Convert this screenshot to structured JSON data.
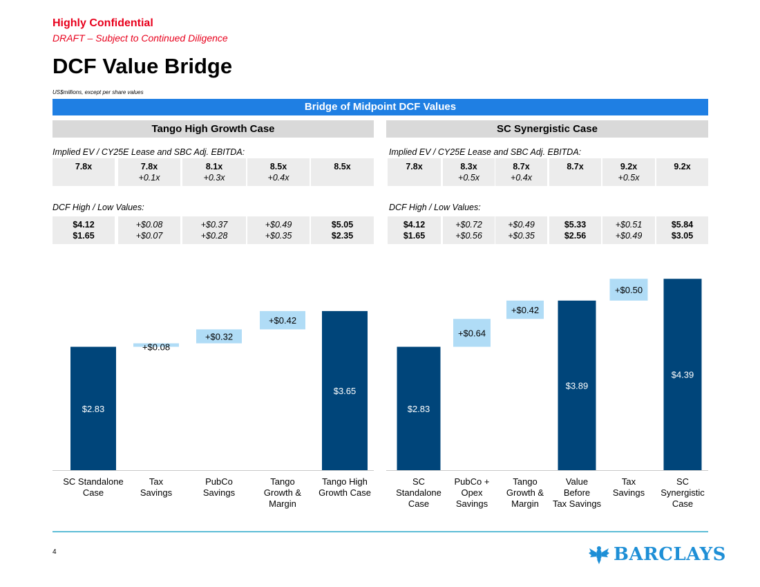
{
  "header": {
    "confidential": "Highly Confidential",
    "draft": "DRAFT – Subject to Continued Diligence",
    "title": "DCF Value Bridge",
    "units": "US$millions, except per share values",
    "banner": "Bridge of Midpoint DCF Values"
  },
  "cases": [
    {
      "name": "Tango High Growth Case",
      "ev_label": "Implied EV / CY25E Lease and SBC Adj. EBITDA:",
      "ev_cells": [
        {
          "l1": "7.8x",
          "l2": ""
        },
        {
          "l1": "7.8x",
          "l2": "+0.1x"
        },
        {
          "l1": "8.1x",
          "l2": "+0.3x"
        },
        {
          "l1": "8.5x",
          "l2": "+0.4x"
        },
        {
          "l1": "8.5x",
          "l2": ""
        }
      ],
      "dcf_label": "DCF High / Low Values:",
      "dcf_cells": [
        {
          "l1": "$4.12",
          "l2": "$1.65",
          "style": "bold"
        },
        {
          "l1": "+$0.08",
          "l2": "+$0.07",
          "style": "ital"
        },
        {
          "l1": "+$0.37",
          "l2": "+$0.28",
          "style": "ital"
        },
        {
          "l1": "+$0.49",
          "l2": "+$0.35",
          "style": "ital"
        },
        {
          "l1": "$5.05",
          "l2": "$2.35",
          "style": "bold"
        }
      ]
    },
    {
      "name": "SC Synergistic Case",
      "ev_label": "Implied EV / CY25E Lease and SBC Adj. EBITDA:",
      "ev_cells": [
        {
          "l1": "7.8x",
          "l2": ""
        },
        {
          "l1": "8.3x",
          "l2": "+0.5x"
        },
        {
          "l1": "8.7x",
          "l2": "+0.4x"
        },
        {
          "l1": "8.7x",
          "l2": ""
        },
        {
          "l1": "9.2x",
          "l2": "+0.5x"
        },
        {
          "l1": "9.2x",
          "l2": ""
        }
      ],
      "dcf_label": "DCF High / Low Values:",
      "dcf_cells": [
        {
          "l1": "$4.12",
          "l2": "$1.65",
          "style": "bold"
        },
        {
          "l1": "+$0.72",
          "l2": "+$0.56",
          "style": "ital"
        },
        {
          "l1": "+$0.49",
          "l2": "+$0.35",
          "style": "ital"
        },
        {
          "l1": "$5.33",
          "l2": "$2.56",
          "style": "bold"
        },
        {
          "l1": "+$0.51",
          "l2": "+$0.49",
          "style": "ital"
        },
        {
          "l1": "$5.84",
          "l2": "$3.05",
          "style": "bold"
        }
      ]
    }
  ],
  "chart_data": [
    {
      "type": "bar",
      "subtype": "waterfall",
      "title": "Tango High Growth Case",
      "ylim": [
        0,
        4.6
      ],
      "colors": {
        "total": "#00457a",
        "delta": "#b0dcf6"
      },
      "bars": [
        {
          "category": "SC Standalone Case",
          "kind": "total",
          "start": 0,
          "value": 2.83,
          "label": "$2.83"
        },
        {
          "category": "Tax Savings",
          "kind": "delta",
          "start": 2.83,
          "value": 0.08,
          "label": "+$0.08"
        },
        {
          "category": "PubCo Savings",
          "kind": "delta",
          "start": 2.91,
          "value": 0.32,
          "label": "+$0.32"
        },
        {
          "category": "Tango Growth & Margin",
          "kind": "delta",
          "start": 3.23,
          "value": 0.42,
          "label": "+$0.42"
        },
        {
          "category": "Tango High Growth Case",
          "kind": "total",
          "start": 0,
          "value": 3.65,
          "label": "$3.65"
        }
      ],
      "categories_display": [
        "SC Standalone\nCase",
        "Tax\nSavings",
        "PubCo\nSavings",
        "Tango\nGrowth &\nMargin",
        "Tango High\nGrowth Case"
      ]
    },
    {
      "type": "bar",
      "subtype": "waterfall",
      "title": "SC Synergistic Case",
      "ylim": [
        0,
        4.6
      ],
      "colors": {
        "total": "#00457a",
        "delta": "#b0dcf6"
      },
      "bars": [
        {
          "category": "SC Standalone Case",
          "kind": "total",
          "start": 0,
          "value": 2.83,
          "label": "$2.83"
        },
        {
          "category": "PubCo + Opex Savings",
          "kind": "delta",
          "start": 2.83,
          "value": 0.64,
          "label": "+$0.64"
        },
        {
          "category": "Tango Growth & Margin",
          "kind": "delta",
          "start": 3.47,
          "value": 0.42,
          "label": "+$0.42"
        },
        {
          "category": "Value Before Tax Savings",
          "kind": "total",
          "start": 0,
          "value": 3.89,
          "label": "$3.89"
        },
        {
          "category": "Tax Savings",
          "kind": "delta",
          "start": 3.89,
          "value": 0.5,
          "label": "+$0.50"
        },
        {
          "category": "SC Synergistic Case",
          "kind": "total",
          "start": 0,
          "value": 4.39,
          "label": "$4.39"
        }
      ],
      "categories_display": [
        "SC\nStandalone\nCase",
        "PubCo +\nOpex\nSavings",
        "Tango\nGrowth &\nMargin",
        "Value\nBefore\nTax Savings",
        "Tax\nSavings",
        "SC\nSynergistic\nCase"
      ]
    }
  ],
  "footer": {
    "page_number": "4",
    "logo_text": "BARCLAYS",
    "logo_icon": "eagle-icon",
    "rule_color": "#5bbcd6"
  }
}
